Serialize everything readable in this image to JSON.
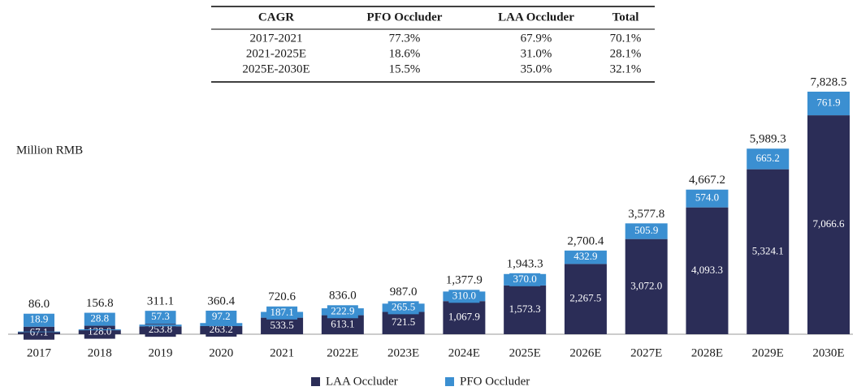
{
  "chart_data": {
    "type": "stacked_bar",
    "y_label": "Million RMB",
    "categories": [
      "2017",
      "2018",
      "2019",
      "2020",
      "2021",
      "2022E",
      "2023E",
      "2024E",
      "2025E",
      "2026E",
      "2027E",
      "2028E",
      "2029E",
      "2030E"
    ],
    "series": [
      {
        "name": "LAA Occluder",
        "color": "#2b2d57",
        "values": [
          67.1,
          128.0,
          253.8,
          263.2,
          533.5,
          613.1,
          721.5,
          1067.9,
          1573.3,
          2267.5,
          3072.0,
          4093.3,
          5324.1,
          7066.6
        ],
        "value_labels": [
          "67.1",
          "128.0",
          "253.8",
          "263.2",
          "533.5",
          "613.1",
          "721.5",
          "1,067.9",
          "1,573.3",
          "2,267.5",
          "3,072.0",
          "4,093.3",
          "5,324.1",
          "7,066.6"
        ]
      },
      {
        "name": "PFO Occluder",
        "color": "#3b8fd1",
        "values": [
          18.9,
          28.8,
          57.3,
          97.2,
          187.1,
          222.9,
          265.5,
          310.0,
          370.0,
          432.9,
          505.9,
          574.0,
          665.2,
          761.9
        ],
        "value_labels": [
          "18.9",
          "28.8",
          "57.3",
          "97.2",
          "187.1",
          "222.9",
          "265.5",
          "310.0",
          "370.0",
          "432.9",
          "505.9",
          "574.0",
          "665.2",
          "761.9"
        ]
      }
    ],
    "totals": [
      86.0,
      156.8,
      311.1,
      360.4,
      720.6,
      836.0,
      987.0,
      1377.9,
      1943.3,
      2700.4,
      3577.8,
      4667.2,
      5989.3,
      7828.5
    ],
    "total_labels": [
      "86.0",
      "156.8",
      "311.1",
      "360.4",
      "720.6",
      "836.0",
      "987.0",
      "1,377.9",
      "1,943.3",
      "2,700.4",
      "3,577.8",
      "4,667.2",
      "5,989.3",
      "7,828.5"
    ],
    "table": {
      "header": [
        "CAGR",
        "PFO Occluder",
        "LAA Occluder",
        "Total"
      ],
      "rows": [
        [
          "2017-2021",
          "77.3%",
          "67.9%",
          "70.1%"
        ],
        [
          "2021-2025E",
          "18.6%",
          "31.0%",
          "28.1%"
        ],
        [
          "2025E-2030E",
          "15.5%",
          "35.0%",
          "32.1%"
        ]
      ]
    }
  }
}
